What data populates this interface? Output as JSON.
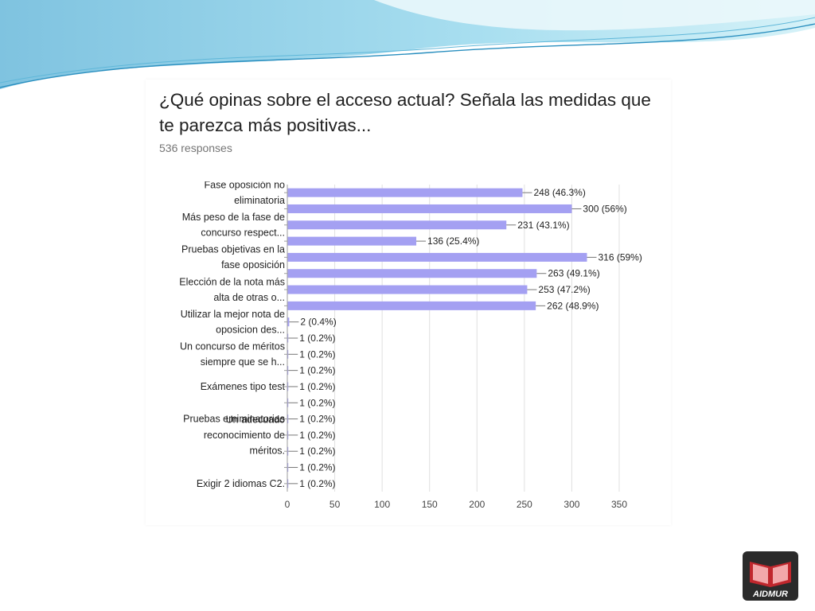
{
  "chart_data": {
    "type": "bar",
    "orientation": "horizontal",
    "title": "¿Qué opinas sobre el acceso actual? Señala las medidas que te parezca más positivas...",
    "subtitle": "536 responses",
    "categories": [
      [
        "Fase oposición no",
        "eliminatoria"
      ],
      [],
      [
        "Más peso de la fase de",
        "concurso respect..."
      ],
      [],
      [
        "Pruebas objetivas en la",
        "fase oposición"
      ],
      [],
      [
        "Elección de la nota más",
        "alta de otras o..."
      ],
      [],
      [
        "Utilizar la mejor nota de",
        "oposicion des..."
      ],
      [],
      [
        "Un concurso de méritos",
        "siempre que se h..."
      ],
      [],
      [
        "Exámenes tipo test"
      ],
      [],
      [
        "Pruebas emiminatorias"
      ],
      [
        "Un adecuado",
        "reconocimiento de",
        "méritos."
      ],
      [],
      [],
      [
        "Exigir 2 idiomas C2."
      ]
    ],
    "values": [
      248,
      300,
      231,
      136,
      316,
      263,
      253,
      262,
      2,
      1,
      1,
      1,
      1,
      1,
      1,
      1,
      1,
      1,
      1
    ],
    "data_labels": [
      "248 (46.3%)",
      "300 (56%)",
      "231 (43.1%)",
      "136 (25.4%)",
      "316 (59%)",
      "263 (49.1%)",
      "253 (47.2%)",
      "262 (48.9%)",
      "2 (0.4%)",
      "1 (0.2%)",
      "1 (0.2%)",
      "1 (0.2%)",
      "1 (0.2%)",
      "1 (0.2%)",
      "1 (0.2%)",
      "1 (0.2%)",
      "1 (0.2%)",
      "1 (0.2%)",
      "1 (0.2%)"
    ],
    "xlim": [
      0,
      350
    ],
    "xticks": [
      0,
      50,
      100,
      150,
      200,
      250,
      300,
      350
    ],
    "grid": true,
    "bar_color": "#a4a0f2"
  },
  "logo": {
    "text": "AIDMUR",
    "color": "#c0272d"
  }
}
